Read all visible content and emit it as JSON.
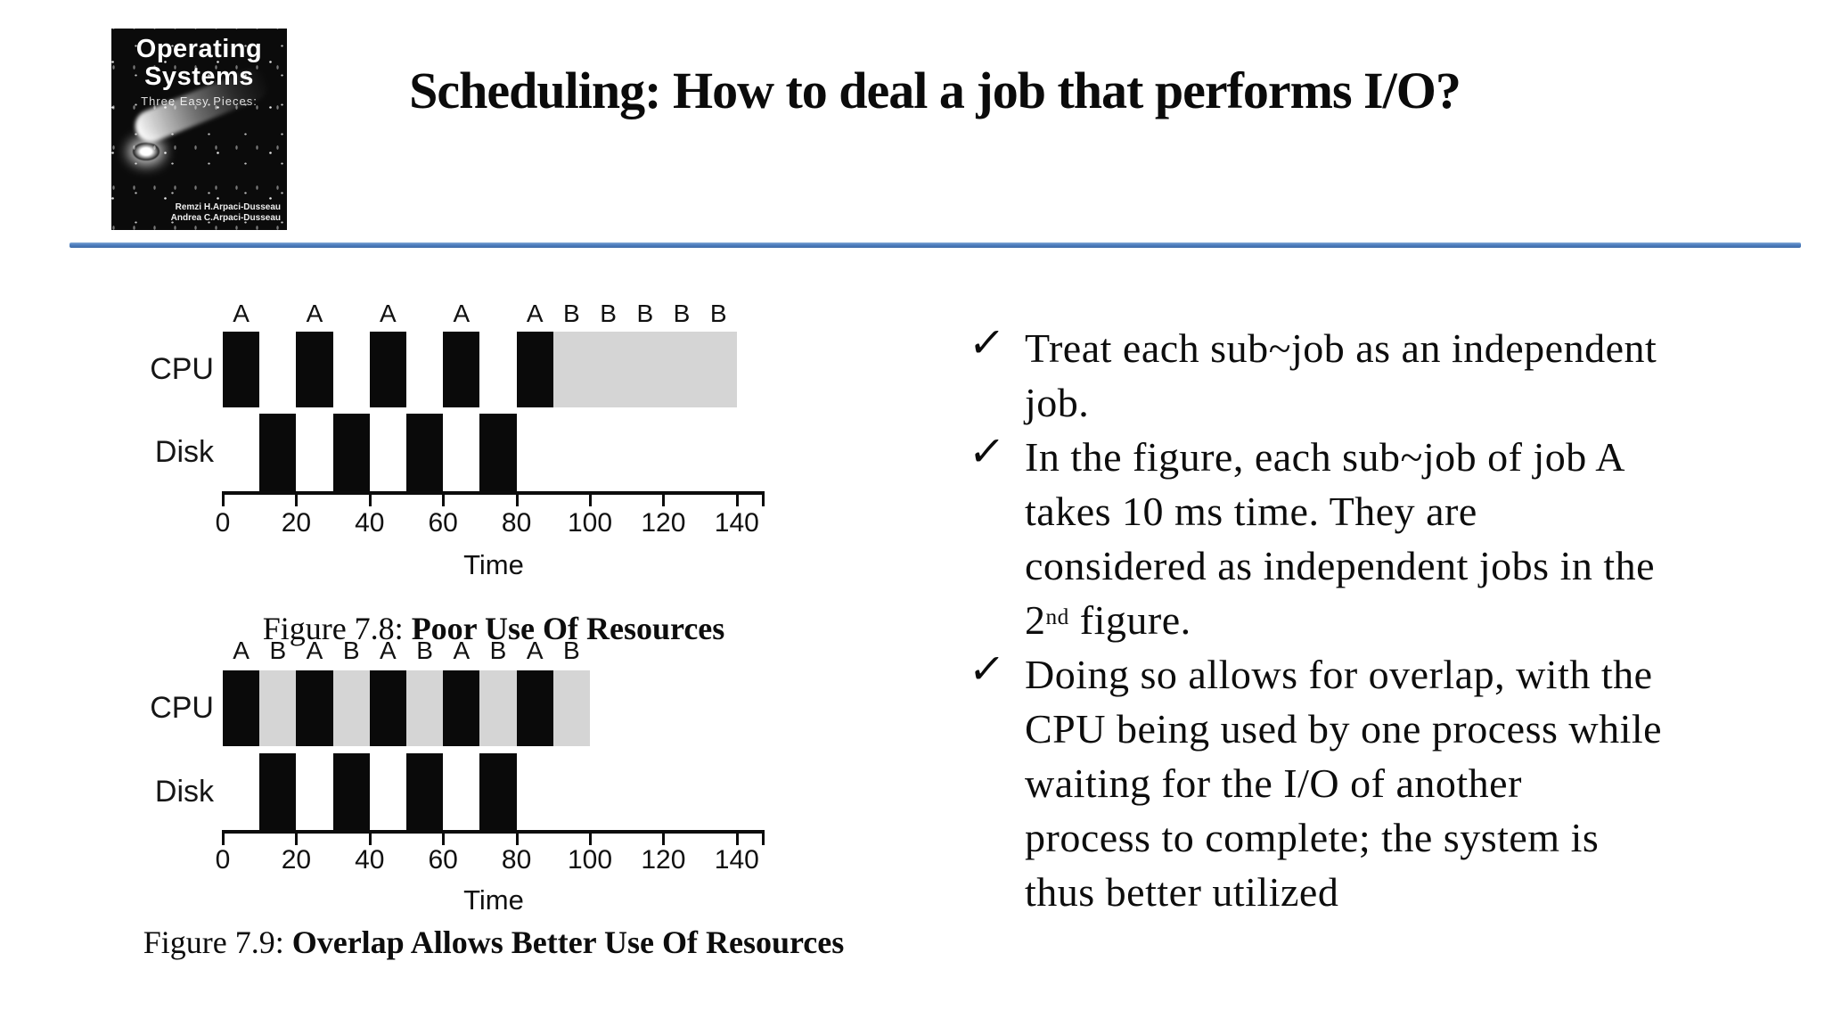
{
  "slide": {
    "title": "Scheduling: How to deal a job that performs I/O?",
    "accent_color": "#4d7ebf"
  },
  "book_cover": {
    "title_line1": "Operating",
    "title_line2": "Systems",
    "subtitle": "Three Easy Pieces:",
    "author_line1": "Remzi H.Arpaci-Dusseau",
    "author_line2": "Andrea C.Arpaci-Dusseau"
  },
  "chart_data": [
    {
      "type": "bar",
      "subtype": "gantt-timeline",
      "caption_prefix": "Figure 7.8:",
      "caption_title": "Poor Use Of Resources",
      "xlabel": "Time",
      "xlim": [
        0,
        150
      ],
      "xticks": [
        0,
        20,
        40,
        60,
        80,
        100,
        120,
        140
      ],
      "colors": {
        "black": "#0a0a0a",
        "gray": "#d5d5d5"
      },
      "top_labels": [
        {
          "t": 5,
          "text": "A"
        },
        {
          "t": 25,
          "text": "A"
        },
        {
          "t": 45,
          "text": "A"
        },
        {
          "t": 65,
          "text": "A"
        },
        {
          "t": 85,
          "text": "A"
        },
        {
          "t": 95,
          "text": "B"
        },
        {
          "t": 105,
          "text": "B"
        },
        {
          "t": 115,
          "text": "B"
        },
        {
          "t": 125,
          "text": "B"
        },
        {
          "t": 135,
          "text": "B"
        }
      ],
      "rows": [
        {
          "label": "CPU",
          "segments": [
            {
              "start": 0,
              "end": 10,
              "shade": "black"
            },
            {
              "start": 20,
              "end": 30,
              "shade": "black"
            },
            {
              "start": 40,
              "end": 50,
              "shade": "black"
            },
            {
              "start": 60,
              "end": 70,
              "shade": "black"
            },
            {
              "start": 80,
              "end": 90,
              "shade": "black"
            },
            {
              "start": 90,
              "end": 140,
              "shade": "gray"
            }
          ]
        },
        {
          "label": "Disk",
          "segments": [
            {
              "start": 10,
              "end": 20,
              "shade": "black"
            },
            {
              "start": 30,
              "end": 40,
              "shade": "black"
            },
            {
              "start": 50,
              "end": 60,
              "shade": "black"
            },
            {
              "start": 70,
              "end": 80,
              "shade": "black"
            }
          ]
        }
      ]
    },
    {
      "type": "bar",
      "subtype": "gantt-timeline",
      "caption_prefix": "Figure 7.9:",
      "caption_title": "Overlap Allows Better Use Of Resources",
      "xlabel": "Time",
      "xlim": [
        0,
        150
      ],
      "xticks": [
        0,
        20,
        40,
        60,
        80,
        100,
        120,
        140
      ],
      "colors": {
        "black": "#0a0a0a",
        "gray": "#d5d5d5"
      },
      "top_labels": [
        {
          "t": 5,
          "text": "A"
        },
        {
          "t": 15,
          "text": "B"
        },
        {
          "t": 25,
          "text": "A"
        },
        {
          "t": 35,
          "text": "B"
        },
        {
          "t": 45,
          "text": "A"
        },
        {
          "t": 55,
          "text": "B"
        },
        {
          "t": 65,
          "text": "A"
        },
        {
          "t": 75,
          "text": "B"
        },
        {
          "t": 85,
          "text": "A"
        },
        {
          "t": 95,
          "text": "B"
        }
      ],
      "rows": [
        {
          "label": "CPU",
          "segments": [
            {
              "start": 0,
              "end": 10,
              "shade": "black"
            },
            {
              "start": 10,
              "end": 20,
              "shade": "gray"
            },
            {
              "start": 20,
              "end": 30,
              "shade": "black"
            },
            {
              "start": 30,
              "end": 40,
              "shade": "gray"
            },
            {
              "start": 40,
              "end": 50,
              "shade": "black"
            },
            {
              "start": 50,
              "end": 60,
              "shade": "gray"
            },
            {
              "start": 60,
              "end": 70,
              "shade": "black"
            },
            {
              "start": 70,
              "end": 80,
              "shade": "gray"
            },
            {
              "start": 80,
              "end": 90,
              "shade": "black"
            },
            {
              "start": 90,
              "end": 100,
              "shade": "gray"
            }
          ]
        },
        {
          "label": "Disk",
          "segments": [
            {
              "start": 10,
              "end": 20,
              "shade": "black"
            },
            {
              "start": 30,
              "end": 40,
              "shade": "black"
            },
            {
              "start": 50,
              "end": 60,
              "shade": "black"
            },
            {
              "start": 70,
              "end": 80,
              "shade": "black"
            }
          ]
        }
      ]
    }
  ],
  "bullets": {
    "marker": "✓",
    "items": [
      {
        "lines": [
          [
            {
              "t": "Treat each sub~job as an independent"
            }
          ],
          [
            {
              "t": "job."
            }
          ]
        ]
      },
      {
        "lines": [
          [
            {
              "t": "In the figure, each sub~job of job A"
            }
          ],
          [
            {
              "t": "takes 10 ms time. They are"
            }
          ],
          [
            {
              "t": "considered as independent jobs in the"
            }
          ],
          [
            {
              "t": "2"
            },
            {
              "sup": "nd"
            },
            {
              "t": " figure."
            }
          ]
        ]
      },
      {
        "lines": [
          [
            {
              "t": "Doing so allows for overlap, with the"
            }
          ],
          [
            {
              "t": "CPU being used by one process while"
            }
          ],
          [
            {
              "t": "waiting for the I/O of another"
            }
          ],
          [
            {
              "t": "process to complete; the system is"
            }
          ],
          [
            {
              "t": "thus better utilized"
            }
          ]
        ]
      }
    ]
  }
}
